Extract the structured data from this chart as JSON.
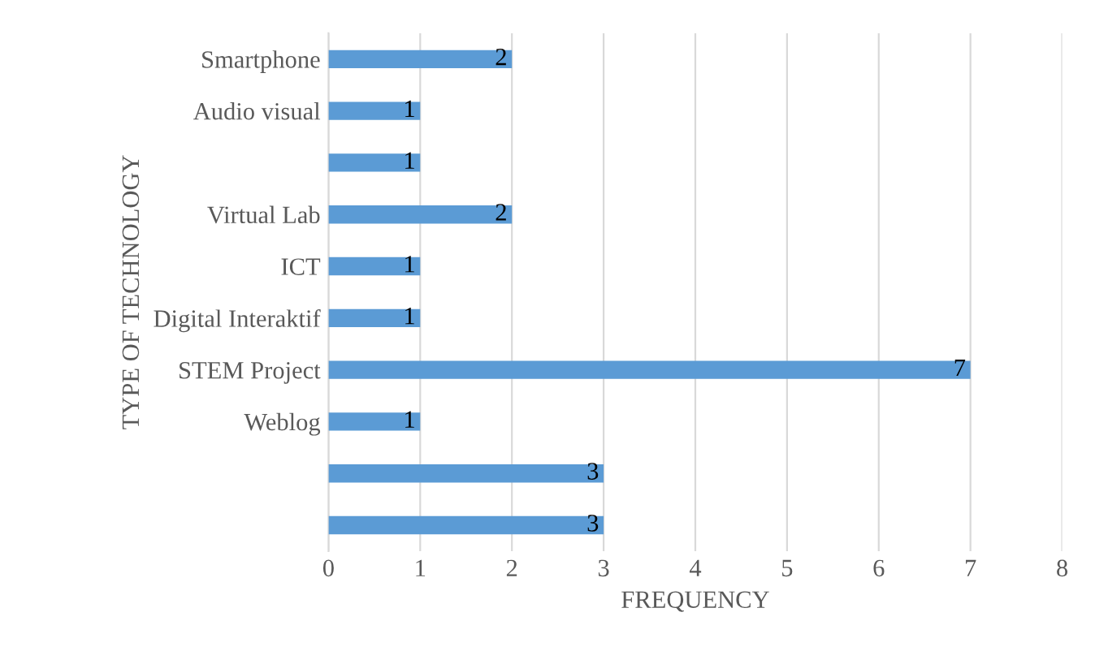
{
  "chart_data": {
    "type": "bar",
    "orientation": "horizontal",
    "categories": [
      "Smartphone",
      "Audio visual",
      null,
      "Virtual Lab",
      "ICT",
      "Digital Interaktif",
      "STEM Project",
      "Weblog",
      null,
      null
    ],
    "values": [
      2,
      1,
      1,
      2,
      1,
      1,
      7,
      1,
      3,
      3
    ],
    "color": "#5b9bd5",
    "xlabel": "FREQUENCY",
    "ylabel": "TYPE OF TECHNOLOGY",
    "xlim": [
      0,
      8
    ],
    "xticks": [
      0,
      1,
      2,
      3,
      4,
      5,
      6,
      7,
      8
    ],
    "grid": "x",
    "data_labels": true
  }
}
